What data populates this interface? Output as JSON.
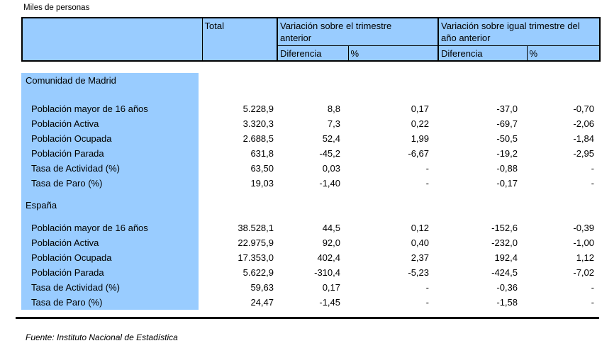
{
  "unit_label": "Miles de personas",
  "source": "Fuente: Instituto Nacional de Estadística",
  "colors": {
    "header_blue": "#99CCFF",
    "border": "#000000",
    "text": "#000000"
  },
  "table": {
    "header": {
      "corner": "",
      "total": "Total",
      "group_quarter": "Variación sobre el trimestre anterior",
      "group_year": "Variación sobre igual trimestre del año anterior",
      "subheaders": [
        "Diferencia",
        "%",
        "Diferencia",
        "%"
      ]
    },
    "sections": [
      {
        "title": "Comunidad de Madrid",
        "rows": [
          {
            "label": "Población mayor de 16 años",
            "cells": [
              "5.228,9",
              "8,8",
              "0,17",
              "-37,0",
              "-0,70"
            ]
          },
          {
            "label": "Población Activa",
            "cells": [
              "3.320,3",
              "7,3",
              "0,22",
              "-69,7",
              "-2,06"
            ]
          },
          {
            "label": "Población Ocupada",
            "cells": [
              "2.688,5",
              "52,4",
              "1,99",
              "-50,5",
              "-1,84"
            ]
          },
          {
            "label": "Población Parada",
            "cells": [
              "631,8",
              "-45,2",
              "-6,67",
              "-19,2",
              "-2,95"
            ]
          },
          {
            "label": "Tasa de Actividad (%)",
            "cells": [
              "63,50",
              "0,03",
              "-",
              "-0,88",
              "-"
            ]
          },
          {
            "label": "Tasa de Paro (%)",
            "cells": [
              "19,03",
              "-1,40",
              "-",
              "-0,17",
              "-"
            ]
          }
        ]
      },
      {
        "title": "España",
        "rows": [
          {
            "label": "Población mayor de 16 años",
            "cells": [
              "38.528,1",
              "44,5",
              "0,12",
              "-152,6",
              "-0,39"
            ]
          },
          {
            "label": "Población Activa",
            "cells": [
              "22.975,9",
              "92,0",
              "0,40",
              "-232,0",
              "-1,00"
            ]
          },
          {
            "label": "Población Ocupada",
            "cells": [
              "17.353,0",
              "402,4",
              "2,37",
              "192,4",
              "1,12"
            ]
          },
          {
            "label": "Población Parada",
            "cells": [
              "5.622,9",
              "-310,4",
              "-5,23",
              "-424,5",
              "-7,02"
            ]
          },
          {
            "label": "Tasa de Actividad (%)",
            "cells": [
              "59,63",
              "0,17",
              "-",
              "-0,36",
              "-"
            ]
          },
          {
            "label": "Tasa de Paro (%)",
            "cells": [
              "24,47",
              "-1,45",
              "-",
              "-1,58",
              "-"
            ]
          }
        ]
      }
    ]
  }
}
